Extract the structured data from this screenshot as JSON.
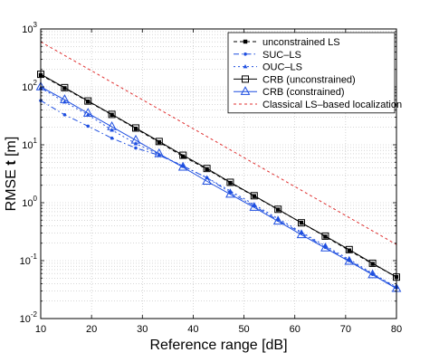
{
  "chart_data": {
    "type": "line",
    "xlabel": "Reference range [dB]",
    "ylabel": "RMSE  t [m]",
    "ylabel_bold_part": "t",
    "xlim": [
      10,
      80
    ],
    "ylim": [
      0.01,
      1000
    ],
    "yscale": "log",
    "grid": true,
    "legend_position": "top-right",
    "x_ticks": [
      10,
      20,
      30,
      40,
      50,
      60,
      70,
      80
    ],
    "y_ticks": [
      {
        "base": "10",
        "exp": "-2",
        "value": 0.01
      },
      {
        "base": "10",
        "exp": "-1",
        "value": 0.1
      },
      {
        "base": "10",
        "exp": "0",
        "value": 1
      },
      {
        "base": "10",
        "exp": "1",
        "value": 10
      },
      {
        "base": "10",
        "exp": "2",
        "value": 100
      },
      {
        "base": "10",
        "exp": "3",
        "value": 1000
      }
    ],
    "series": [
      {
        "name": "unconstrained LS",
        "color": "#000000",
        "dash": "4,3",
        "marker": "square-filled",
        "x": [
          10,
          14.7,
          19.3,
          24,
          28.7,
          33.3,
          38,
          42.7,
          47.3,
          52,
          56.7,
          61.3,
          66,
          70.7,
          75.3,
          80
        ],
        "y": [
          160,
          95,
          56,
          33,
          19,
          11.1,
          6.3,
          3.8,
          2.2,
          1.3,
          0.76,
          0.45,
          0.26,
          0.15,
          0.088,
          0.052
        ]
      },
      {
        "name": "SUC–LS",
        "color": "#1f4fe0",
        "dash": "6,3,1.5,3",
        "marker": "dot",
        "x": [
          10,
          14.7,
          19.3,
          24,
          28.7,
          33.3,
          38,
          42.7,
          47.3,
          52,
          56.7,
          61.3,
          66,
          70.7,
          75.3,
          80
        ],
        "y": [
          58,
          33,
          21,
          13,
          8.8,
          6.6,
          4.3,
          2.7,
          1.5,
          0.88,
          0.5,
          0.3,
          0.17,
          0.1,
          0.058,
          0.034
        ]
      },
      {
        "name": "OUC–LS",
        "color": "#1f4fe0",
        "dash": "2,3",
        "marker": "triangle-filled",
        "x": [
          10,
          14.7,
          19.3,
          24,
          28.7,
          33.3,
          38,
          42.7,
          47.3,
          52,
          56.7,
          61.3,
          66,
          70.7,
          75.3,
          80
        ],
        "y": [
          96,
          55,
          33,
          18,
          10.5,
          6.8,
          4.3,
          2.7,
          1.6,
          0.93,
          0.53,
          0.31,
          0.18,
          0.105,
          0.06,
          0.035
        ]
      },
      {
        "name": "CRB (unconstrained)",
        "color": "#000000",
        "dash": "",
        "marker": "square-open",
        "x": [
          10,
          14.7,
          19.3,
          24,
          28.7,
          33.3,
          38,
          42.7,
          47.3,
          52,
          56.7,
          61.3,
          66,
          70.7,
          75.3,
          80
        ],
        "y": [
          165,
          97,
          57,
          33.5,
          19.5,
          11.4,
          6.6,
          3.9,
          2.25,
          1.32,
          0.77,
          0.45,
          0.265,
          0.155,
          0.09,
          0.052
        ]
      },
      {
        "name": "CRB (constrained)",
        "color": "#1f4fe0",
        "dash": "",
        "marker": "triangle-open",
        "x": [
          10,
          14.7,
          19.3,
          24,
          28.7,
          33.3,
          38,
          42.7,
          47.3,
          52,
          56.7,
          61.3,
          66,
          70.7,
          75.3,
          80
        ],
        "y": [
          100,
          60,
          35,
          20.5,
          12,
          7,
          4.1,
          2.35,
          1.4,
          0.83,
          0.48,
          0.28,
          0.165,
          0.097,
          0.057,
          0.033
        ]
      },
      {
        "name": "Classical LS–based localization",
        "color": "#e03030",
        "dash": "3,3",
        "marker": "none",
        "x": [
          10,
          80
        ],
        "y": [
          600,
          0.19
        ]
      }
    ]
  }
}
